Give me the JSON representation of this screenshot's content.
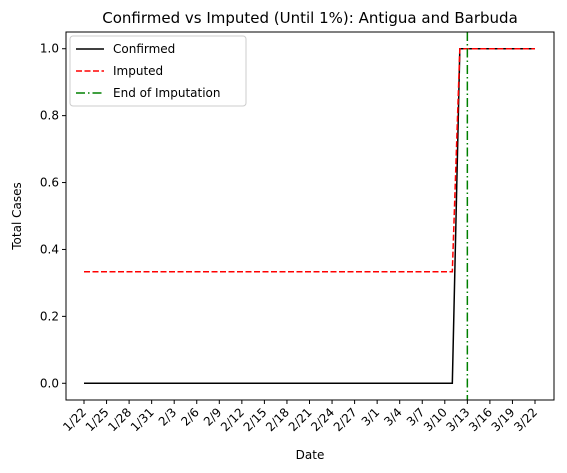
{
  "chart_data": {
    "type": "line",
    "title": "Confirmed vs Imputed (Until 1%): Antigua and Barbuda",
    "xlabel": "Date",
    "ylabel": "Total Cases",
    "x": [
      "1/22",
      "1/23",
      "1/24",
      "1/25",
      "1/26",
      "1/27",
      "1/28",
      "1/29",
      "1/30",
      "1/31",
      "2/1",
      "2/2",
      "2/3",
      "2/4",
      "2/5",
      "2/6",
      "2/7",
      "2/8",
      "2/9",
      "2/10",
      "2/11",
      "2/12",
      "2/13",
      "2/14",
      "2/15",
      "2/16",
      "2/17",
      "2/18",
      "2/19",
      "2/20",
      "2/21",
      "2/22",
      "2/23",
      "2/24",
      "2/25",
      "2/26",
      "2/27",
      "2/28",
      "2/29",
      "3/1",
      "3/2",
      "3/3",
      "3/4",
      "3/5",
      "3/6",
      "3/7",
      "3/8",
      "3/9",
      "3/10",
      "3/11",
      "3/12",
      "3/13",
      "3/14",
      "3/15",
      "3/16",
      "3/17",
      "3/18",
      "3/19",
      "3/20",
      "3/21",
      "3/22"
    ],
    "xticks": [
      "1/22",
      "1/25",
      "1/28",
      "1/31",
      "2/3",
      "2/6",
      "2/9",
      "2/12",
      "2/15",
      "2/18",
      "2/21",
      "2/24",
      "2/27",
      "3/1",
      "3/4",
      "3/7",
      "3/10",
      "3/13",
      "3/16",
      "3/19",
      "3/22"
    ],
    "yticks": [
      "0.0",
      "0.2",
      "0.4",
      "0.6",
      "0.8",
      "1.0"
    ],
    "ylim": [
      -0.05,
      1.05
    ],
    "series": [
      {
        "name": "Confirmed",
        "color": "#000000",
        "style": "solid",
        "values": [
          0,
          0,
          0,
          0,
          0,
          0,
          0,
          0,
          0,
          0,
          0,
          0,
          0,
          0,
          0,
          0,
          0,
          0,
          0,
          0,
          0,
          0,
          0,
          0,
          0,
          0,
          0,
          0,
          0,
          0,
          0,
          0,
          0,
          0,
          0,
          0,
          0,
          0,
          0,
          0,
          0,
          0,
          0,
          0,
          0,
          0,
          0,
          0,
          0,
          0,
          1,
          1,
          1,
          1,
          1,
          1,
          1,
          1,
          1,
          1,
          1
        ]
      },
      {
        "name": "Imputed",
        "color": "#ff0000",
        "style": "dashed",
        "values": [
          0.3333,
          0.3333,
          0.3333,
          0.3333,
          0.3333,
          0.3333,
          0.3333,
          0.3333,
          0.3333,
          0.3333,
          0.3333,
          0.3333,
          0.3333,
          0.3333,
          0.3333,
          0.3333,
          0.3333,
          0.3333,
          0.3333,
          0.3333,
          0.3333,
          0.3333,
          0.3333,
          0.3333,
          0.3333,
          0.3333,
          0.3333,
          0.3333,
          0.3333,
          0.3333,
          0.3333,
          0.3333,
          0.3333,
          0.3333,
          0.3333,
          0.3333,
          0.3333,
          0.3333,
          0.3333,
          0.3333,
          0.3333,
          0.3333,
          0.3333,
          0.3333,
          0.3333,
          0.3333,
          0.3333,
          0.3333,
          0.3333,
          0.3333,
          1,
          1,
          1,
          1,
          1,
          1,
          1,
          1,
          1,
          1,
          1
        ]
      }
    ],
    "vline": {
      "name": "End of Imputation",
      "x": "3/13",
      "color": "#008000",
      "style": "dashdot"
    },
    "legend": {
      "placement": "upper-left",
      "entries": [
        "Confirmed",
        "Imputed",
        "End of Imputation"
      ]
    },
    "grid": false
  }
}
